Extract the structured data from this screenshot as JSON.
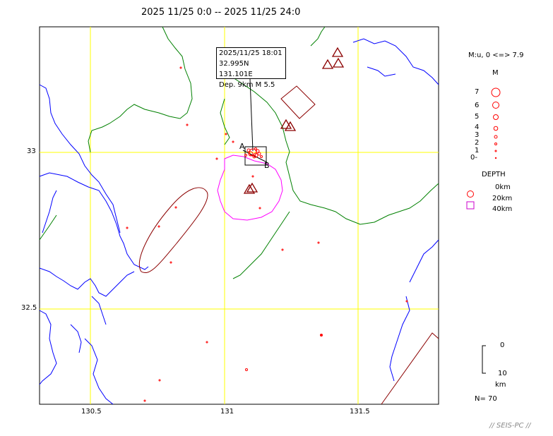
{
  "header": {
    "title": "2025 11/25 0:0 -- 2025 11/25 24:0"
  },
  "map": {
    "lat_ticks": [
      "33",
      "32.5"
    ],
    "lon_ticks": [
      "130.5",
      "131",
      "131.5"
    ],
    "section_markers": {
      "a": "A",
      "b": "B"
    },
    "popup": {
      "datetime": "2025/11/25 18:01",
      "coords": "32.995N  131.101E",
      "depth_mag": "Dep. 9km    M 5.5"
    },
    "colors": {
      "coast": "#0000ff",
      "border": "#008000",
      "grid": "#ffff00",
      "caldera": "#ff00ff",
      "volcano": "#8b0000",
      "fault_zone": "#8b0000",
      "quake": "#ff0000"
    }
  },
  "legend": {
    "mag_range": "M:u, 0 <=> 7.9",
    "mag_header": "M",
    "mag_labels": [
      "7",
      "6",
      "5",
      "4",
      "3",
      "2",
      "1",
      "0-"
    ],
    "depth_header": "DEPTH",
    "depth_labels": [
      "0km",
      "20km",
      "40km"
    ],
    "scale_top": "0",
    "scale_bottom": "10",
    "scale_unit": "km",
    "count": "N= 70"
  },
  "footer": {
    "brand": "// SEIS-PC //"
  }
}
